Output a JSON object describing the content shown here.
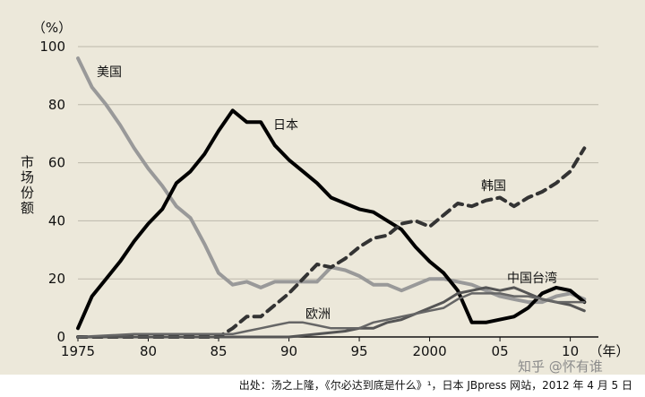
{
  "chart_data": {
    "type": "line",
    "ylabel": "市场份额",
    "yunit": "（%）",
    "xunit": "（年）",
    "ylim": [
      0,
      100
    ],
    "xlim": [
      1975,
      2012
    ],
    "yticks": [
      0,
      20,
      40,
      60,
      80,
      100
    ],
    "xticks": [
      {
        "value": 1975,
        "label": "1975"
      },
      {
        "value": 1980,
        "label": "80"
      },
      {
        "value": 1985,
        "label": "85"
      },
      {
        "value": 1990,
        "label": "90"
      },
      {
        "value": 1995,
        "label": "95"
      },
      {
        "value": 2000,
        "label": "2000"
      },
      {
        "value": 2005,
        "label": "05"
      },
      {
        "value": 2010,
        "label": "10"
      }
    ],
    "grid": true,
    "series": [
      {
        "name": "美国",
        "color": "#999999",
        "style": "solid",
        "points": [
          [
            1975,
            96
          ],
          [
            1976,
            86
          ],
          [
            1977,
            80
          ],
          [
            1978,
            73
          ],
          [
            1979,
            65
          ],
          [
            1980,
            58
          ],
          [
            1981,
            52
          ],
          [
            1982,
            45
          ],
          [
            1983,
            41
          ],
          [
            1984,
            32
          ],
          [
            1985,
            22
          ],
          [
            1986,
            18
          ],
          [
            1987,
            19
          ],
          [
            1988,
            17
          ],
          [
            1989,
            19
          ],
          [
            1990,
            19
          ],
          [
            1991,
            19
          ],
          [
            1992,
            19
          ],
          [
            1993,
            24
          ],
          [
            1994,
            23
          ],
          [
            1995,
            21
          ],
          [
            1996,
            18
          ],
          [
            1997,
            18
          ],
          [
            1998,
            16
          ],
          [
            1999,
            18
          ],
          [
            2000,
            20
          ],
          [
            2001,
            20
          ],
          [
            2002,
            19
          ],
          [
            2003,
            18
          ],
          [
            2004,
            16
          ],
          [
            2005,
            14
          ],
          [
            2006,
            13
          ],
          [
            2007,
            12
          ],
          [
            2008,
            12
          ],
          [
            2009,
            14
          ],
          [
            2010,
            15
          ],
          [
            2011,
            13
          ]
        ]
      },
      {
        "name": "日本",
        "color": "#000000",
        "style": "solid",
        "points": [
          [
            1975,
            3
          ],
          [
            1976,
            14
          ],
          [
            1977,
            20
          ],
          [
            1978,
            26
          ],
          [
            1979,
            33
          ],
          [
            1980,
            39
          ],
          [
            1981,
            44
          ],
          [
            1982,
            53
          ],
          [
            1983,
            57
          ],
          [
            1984,
            63
          ],
          [
            1985,
            71
          ],
          [
            1986,
            78
          ],
          [
            1987,
            74
          ],
          [
            1988,
            74
          ],
          [
            1989,
            66
          ],
          [
            1990,
            61
          ],
          [
            1991,
            57
          ],
          [
            1992,
            53
          ],
          [
            1993,
            48
          ],
          [
            1994,
            46
          ],
          [
            1995,
            44
          ],
          [
            1996,
            43
          ],
          [
            1997,
            40
          ],
          [
            1998,
            37
          ],
          [
            1999,
            31
          ],
          [
            2000,
            26
          ],
          [
            2001,
            22
          ],
          [
            2002,
            16
          ],
          [
            2003,
            5
          ],
          [
            2004,
            5
          ],
          [
            2005,
            6
          ],
          [
            2006,
            7
          ],
          [
            2007,
            10
          ],
          [
            2008,
            15
          ],
          [
            2009,
            17
          ],
          [
            2010,
            16
          ],
          [
            2011,
            12
          ]
        ]
      },
      {
        "name": "韩国",
        "color": "#333333",
        "style": "dashed",
        "points": [
          [
            1975,
            0
          ],
          [
            1980,
            0
          ],
          [
            1985,
            0
          ],
          [
            1986,
            3
          ],
          [
            1987,
            7
          ],
          [
            1988,
            7
          ],
          [
            1989,
            11
          ],
          [
            1990,
            15
          ],
          [
            1991,
            20
          ],
          [
            1992,
            25
          ],
          [
            1993,
            24
          ],
          [
            1994,
            27
          ],
          [
            1995,
            31
          ],
          [
            1996,
            34
          ],
          [
            1997,
            35
          ],
          [
            1998,
            39
          ],
          [
            1999,
            40
          ],
          [
            2000,
            38
          ],
          [
            2001,
            42
          ],
          [
            2002,
            46
          ],
          [
            2003,
            45
          ],
          [
            2004,
            47
          ],
          [
            2005,
            48
          ],
          [
            2006,
            45
          ],
          [
            2007,
            48
          ],
          [
            2008,
            50
          ],
          [
            2009,
            53
          ],
          [
            2010,
            57
          ],
          [
            2011,
            65
          ]
        ]
      },
      {
        "name": "中国台湾",
        "color": "#555555",
        "style": "solid",
        "points": [
          [
            1975,
            0
          ],
          [
            1985,
            0
          ],
          [
            1990,
            0
          ],
          [
            1992,
            1
          ],
          [
            1994,
            2
          ],
          [
            1995,
            3
          ],
          [
            1996,
            3
          ],
          [
            1997,
            5
          ],
          [
            1998,
            6
          ],
          [
            1999,
            8
          ],
          [
            2000,
            10
          ],
          [
            2001,
            12
          ],
          [
            2002,
            15
          ],
          [
            2003,
            16
          ],
          [
            2004,
            17
          ],
          [
            2005,
            16
          ],
          [
            2006,
            17
          ],
          [
            2007,
            15
          ],
          [
            2008,
            13
          ],
          [
            2009,
            12
          ],
          [
            2010,
            11
          ],
          [
            2011,
            9
          ]
        ]
      },
      {
        "name": "欧洲",
        "color": "#666666",
        "style": "solid",
        "points": [
          [
            1975,
            0
          ],
          [
            1979,
            1
          ],
          [
            1985,
            1
          ],
          [
            1986,
            1
          ],
          [
            1987,
            2
          ],
          [
            1988,
            3
          ],
          [
            1989,
            4
          ],
          [
            1990,
            5
          ],
          [
            1991,
            5
          ],
          [
            1992,
            4
          ],
          [
            1993,
            3
          ],
          [
            1994,
            3
          ],
          [
            1995,
            3
          ],
          [
            1996,
            5
          ],
          [
            1997,
            6
          ],
          [
            1998,
            7
          ],
          [
            1999,
            8
          ],
          [
            2000,
            9
          ],
          [
            2001,
            10
          ],
          [
            2002,
            13
          ],
          [
            2003,
            15
          ],
          [
            2004,
            15
          ],
          [
            2005,
            15
          ],
          [
            2006,
            14
          ],
          [
            2007,
            14
          ],
          [
            2008,
            13
          ],
          [
            2009,
            12
          ],
          [
            2010,
            12
          ],
          [
            2011,
            12
          ]
        ]
      }
    ]
  },
  "source_note": "出处：汤之上隆，《尔必达到底是什么》¹，日本 JBpress 网站，2012 年 4 月 5 日",
  "watermark": "知乎 @怀有谁"
}
